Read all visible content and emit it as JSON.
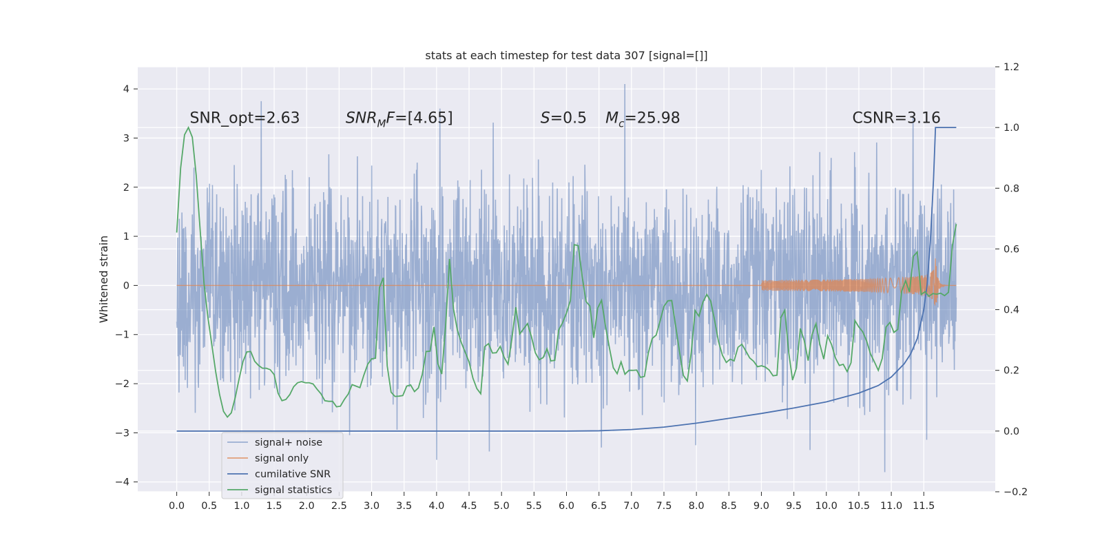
{
  "chart_data": {
    "type": "line",
    "title": "stats at each timestep for test data 307 [signal=[]]",
    "ylabel": "Whitened strain",
    "xlim": [
      -0.6,
      12.6
    ],
    "ylim": [
      -4.2,
      4.45
    ],
    "y2lim": [
      -0.2,
      1.2
    ],
    "grid": true,
    "legend_position": "lower-left",
    "x_ticks": [
      0.0,
      0.5,
      1.0,
      1.5,
      2.0,
      2.5,
      3.0,
      3.5,
      4.0,
      4.5,
      5.0,
      5.5,
      6.0,
      6.5,
      7.0,
      7.5,
      8.0,
      8.5,
      9.0,
      9.5,
      10.0,
      10.5,
      11.0,
      11.5
    ],
    "x_tick_labels": [
      "0.0",
      "0.5",
      "1.0",
      "1.5",
      "2.0",
      "2.5",
      "3.0",
      "3.5",
      "4.0",
      "4.5",
      "5.0",
      "5.5",
      "6.0",
      "6.5",
      "7.0",
      "7.5",
      "8.0",
      "8.5",
      "9.0",
      "9.5",
      "10.0",
      "10.5",
      "11.0",
      "11.5"
    ],
    "y_ticks": [
      -4,
      -3,
      -2,
      -1,
      0,
      1,
      2,
      3,
      4
    ],
    "y_tick_labels": [
      "−4",
      "−3",
      "−2",
      "−1",
      "0",
      "1",
      "2",
      "3",
      "4"
    ],
    "y2_ticks": [
      -0.2,
      0.0,
      0.2,
      0.4,
      0.6,
      0.8,
      1.0,
      1.2
    ],
    "y2_tick_labels": [
      "−0.2",
      "0.0",
      "0.2",
      "0.4",
      "0.6",
      "0.8",
      "1.0",
      "1.2"
    ],
    "annotations": [
      {
        "id": "snr-opt",
        "text": "SNR_opt=2.63",
        "x": 0.2,
        "y": 3.25
      },
      {
        "id": "snr-mf",
        "text": "=[4.65]",
        "math_main": "SNR",
        "math_sub": "M",
        "math_tail": "F",
        "x": 2.6,
        "y": 3.25
      },
      {
        "id": "s-value",
        "text": "=0.5",
        "math_main": "S",
        "x": 5.6,
        "y": 3.25
      },
      {
        "id": "mc-value",
        "text": "=25.98",
        "math_main": "M",
        "math_sub": "c",
        "x": 6.6,
        "y": 3.25
      },
      {
        "id": "csnr",
        "text": "CSNR=3.16",
        "x": 10.4,
        "y": 3.25
      }
    ],
    "series": [
      {
        "name": "signal+ noise",
        "color": "#4c72b0",
        "alpha": 0.5,
        "generated": true,
        "x_range": [
          0.0,
          12.0
        ],
        "n_points": 2400,
        "sigma": 1.0,
        "dashed_box": true,
        "peaks": [
          {
            "x": 1.3,
            "y": 3.75
          },
          {
            "x": 4.05,
            "y": 3.6
          },
          {
            "x": 6.9,
            "y": 4.1
          },
          {
            "x": 10.9,
            "y": -3.8
          },
          {
            "x": 4.0,
            "y": -3.55
          },
          {
            "x": 9.75,
            "y": -3.35
          }
        ]
      },
      {
        "name": "signal only",
        "color": "#dd8452",
        "generated": true,
        "chirp": {
          "t_start": 0.0,
          "t_peak": 11.68,
          "t_end": 12.0,
          "amplitude": 0.65
        }
      },
      {
        "name": "cumilative SNR",
        "color": "#4c72b0",
        "axis": "right",
        "x": [
          0.0,
          6.0,
          6.5,
          7.0,
          7.5,
          8.0,
          8.5,
          9.0,
          9.5,
          10.0,
          10.5,
          10.8,
          11.0,
          11.2,
          11.3,
          11.4,
          11.5,
          11.55,
          11.6,
          11.65,
          11.68,
          12.0
        ],
        "y": [
          0.0,
          0.0,
          0.001,
          0.005,
          0.013,
          0.026,
          0.042,
          0.058,
          0.076,
          0.096,
          0.125,
          0.15,
          0.178,
          0.222,
          0.255,
          0.305,
          0.4,
          0.48,
          0.62,
          0.83,
          1.0,
          1.0
        ]
      },
      {
        "name": "signal statistics",
        "color": "#55a868",
        "axis": "right",
        "x": [
          0.0,
          0.06,
          0.12,
          0.18,
          0.24,
          0.3,
          0.36,
          0.42,
          0.48,
          0.54,
          0.6,
          0.66,
          0.72,
          0.78,
          0.84,
          0.9,
          0.96,
          1.02,
          1.08,
          1.14,
          1.2,
          1.26,
          1.32,
          1.38,
          1.44,
          1.5,
          1.56,
          1.62,
          1.68,
          1.74,
          1.8,
          1.86,
          1.92,
          1.98,
          2.04,
          2.1,
          2.16,
          2.22,
          2.28,
          2.34,
          2.4,
          2.46,
          2.52,
          2.58,
          2.64,
          2.7,
          2.76,
          2.82,
          2.88,
          2.94,
          3.0,
          3.06,
          3.12,
          3.18,
          3.24,
          3.3,
          3.36,
          3.42,
          3.48,
          3.54,
          3.6,
          3.66,
          3.72,
          3.78,
          3.84,
          3.9,
          3.96,
          4.02,
          4.08,
          4.14,
          4.2,
          4.26,
          4.32,
          4.38,
          4.44,
          4.5,
          4.56,
          4.62,
          4.68,
          4.74,
          4.8,
          4.86,
          4.92,
          4.98,
          5.04,
          5.1,
          5.16,
          5.22,
          5.28,
          5.34,
          5.4,
          5.46,
          5.52,
          5.58,
          5.64,
          5.7,
          5.76,
          5.82,
          5.88,
          5.94,
          6.0,
          6.06,
          6.12,
          6.18,
          6.24,
          6.3,
          6.36,
          6.42,
          6.48,
          6.54,
          6.6,
          6.66,
          6.72,
          6.78,
          6.84,
          6.9,
          6.96,
          7.02,
          7.08,
          7.14,
          7.2,
          7.26,
          7.32,
          7.38,
          7.44,
          7.5,
          7.56,
          7.62,
          7.68,
          7.74,
          7.8,
          7.86,
          7.92,
          7.98,
          8.04,
          8.1,
          8.16,
          8.22,
          8.28,
          8.34,
          8.4,
          8.46,
          8.52,
          8.58,
          8.64,
          8.7,
          8.76,
          8.82,
          8.88,
          8.94,
          9.0,
          9.06,
          9.12,
          9.18,
          9.24,
          9.3,
          9.36,
          9.42,
          9.48,
          9.54,
          9.6,
          9.66,
          9.72,
          9.78,
          9.84,
          9.9,
          9.96,
          10.02,
          10.08,
          10.14,
          10.2,
          10.26,
          10.32,
          10.38,
          10.44,
          10.5,
          10.56,
          10.62,
          10.68,
          10.74,
          10.8,
          10.86,
          10.92,
          10.98,
          11.04,
          11.1,
          11.16,
          11.22,
          11.28,
          11.34,
          11.4,
          11.46,
          11.52,
          11.58,
          11.64,
          11.7,
          11.76,
          11.82,
          11.88,
          11.94,
          12.0
        ],
        "y": [
          0.654,
          0.866,
          0.976,
          1.0,
          0.968,
          0.842,
          0.664,
          0.487,
          0.375,
          0.285,
          0.195,
          0.12,
          0.065,
          0.046,
          0.06,
          0.11,
          0.172,
          0.229,
          0.261,
          0.262,
          0.23,
          0.216,
          0.207,
          0.207,
          0.202,
          0.186,
          0.125,
          0.1,
          0.104,
          0.12,
          0.146,
          0.159,
          0.163,
          0.159,
          0.159,
          0.155,
          0.138,
          0.123,
          0.1,
          0.098,
          0.098,
          0.08,
          0.082,
          0.104,
          0.122,
          0.153,
          0.148,
          0.143,
          0.184,
          0.22,
          0.238,
          0.24,
          0.472,
          0.505,
          0.215,
          0.128,
          0.114,
          0.115,
          0.117,
          0.148,
          0.152,
          0.13,
          0.142,
          0.187,
          0.262,
          0.263,
          0.343,
          0.222,
          0.188,
          0.349,
          0.567,
          0.403,
          0.333,
          0.292,
          0.26,
          0.228,
          0.174,
          0.14,
          0.123,
          0.278,
          0.288,
          0.257,
          0.258,
          0.279,
          0.243,
          0.22,
          0.305,
          0.408,
          0.32,
          0.337,
          0.354,
          0.311,
          0.258,
          0.235,
          0.242,
          0.271,
          0.231,
          0.233,
          0.333,
          0.357,
          0.389,
          0.43,
          0.614,
          0.611,
          0.511,
          0.427,
          0.412,
          0.307,
          0.405,
          0.431,
          0.346,
          0.275,
          0.209,
          0.189,
          0.228,
          0.187,
          0.2,
          0.2,
          0.201,
          0.177,
          0.18,
          0.258,
          0.305,
          0.316,
          0.362,
          0.411,
          0.429,
          0.43,
          0.347,
          0.261,
          0.183,
          0.165,
          0.258,
          0.397,
          0.378,
          0.425,
          0.45,
          0.428,
          0.365,
          0.295,
          0.25,
          0.226,
          0.237,
          0.231,
          0.276,
          0.286,
          0.264,
          0.241,
          0.23,
          0.212,
          0.215,
          0.211,
          0.201,
          0.182,
          0.184,
          0.374,
          0.398,
          0.26,
          0.168,
          0.208,
          0.338,
          0.298,
          0.232,
          0.318,
          0.354,
          0.286,
          0.237,
          0.314,
          0.285,
          0.241,
          0.216,
          0.22,
          0.196,
          0.225,
          0.364,
          0.343,
          0.327,
          0.297,
          0.254,
          0.228,
          0.2,
          0.239,
          0.343,
          0.358,
          0.325,
          0.335,
          0.461,
          0.495,
          0.458,
          0.576,
          0.59,
          0.45,
          0.459,
          0.444,
          0.453,
          0.451,
          0.454,
          0.446,
          0.457,
          0.61,
          0.682
        ]
      }
    ]
  }
}
